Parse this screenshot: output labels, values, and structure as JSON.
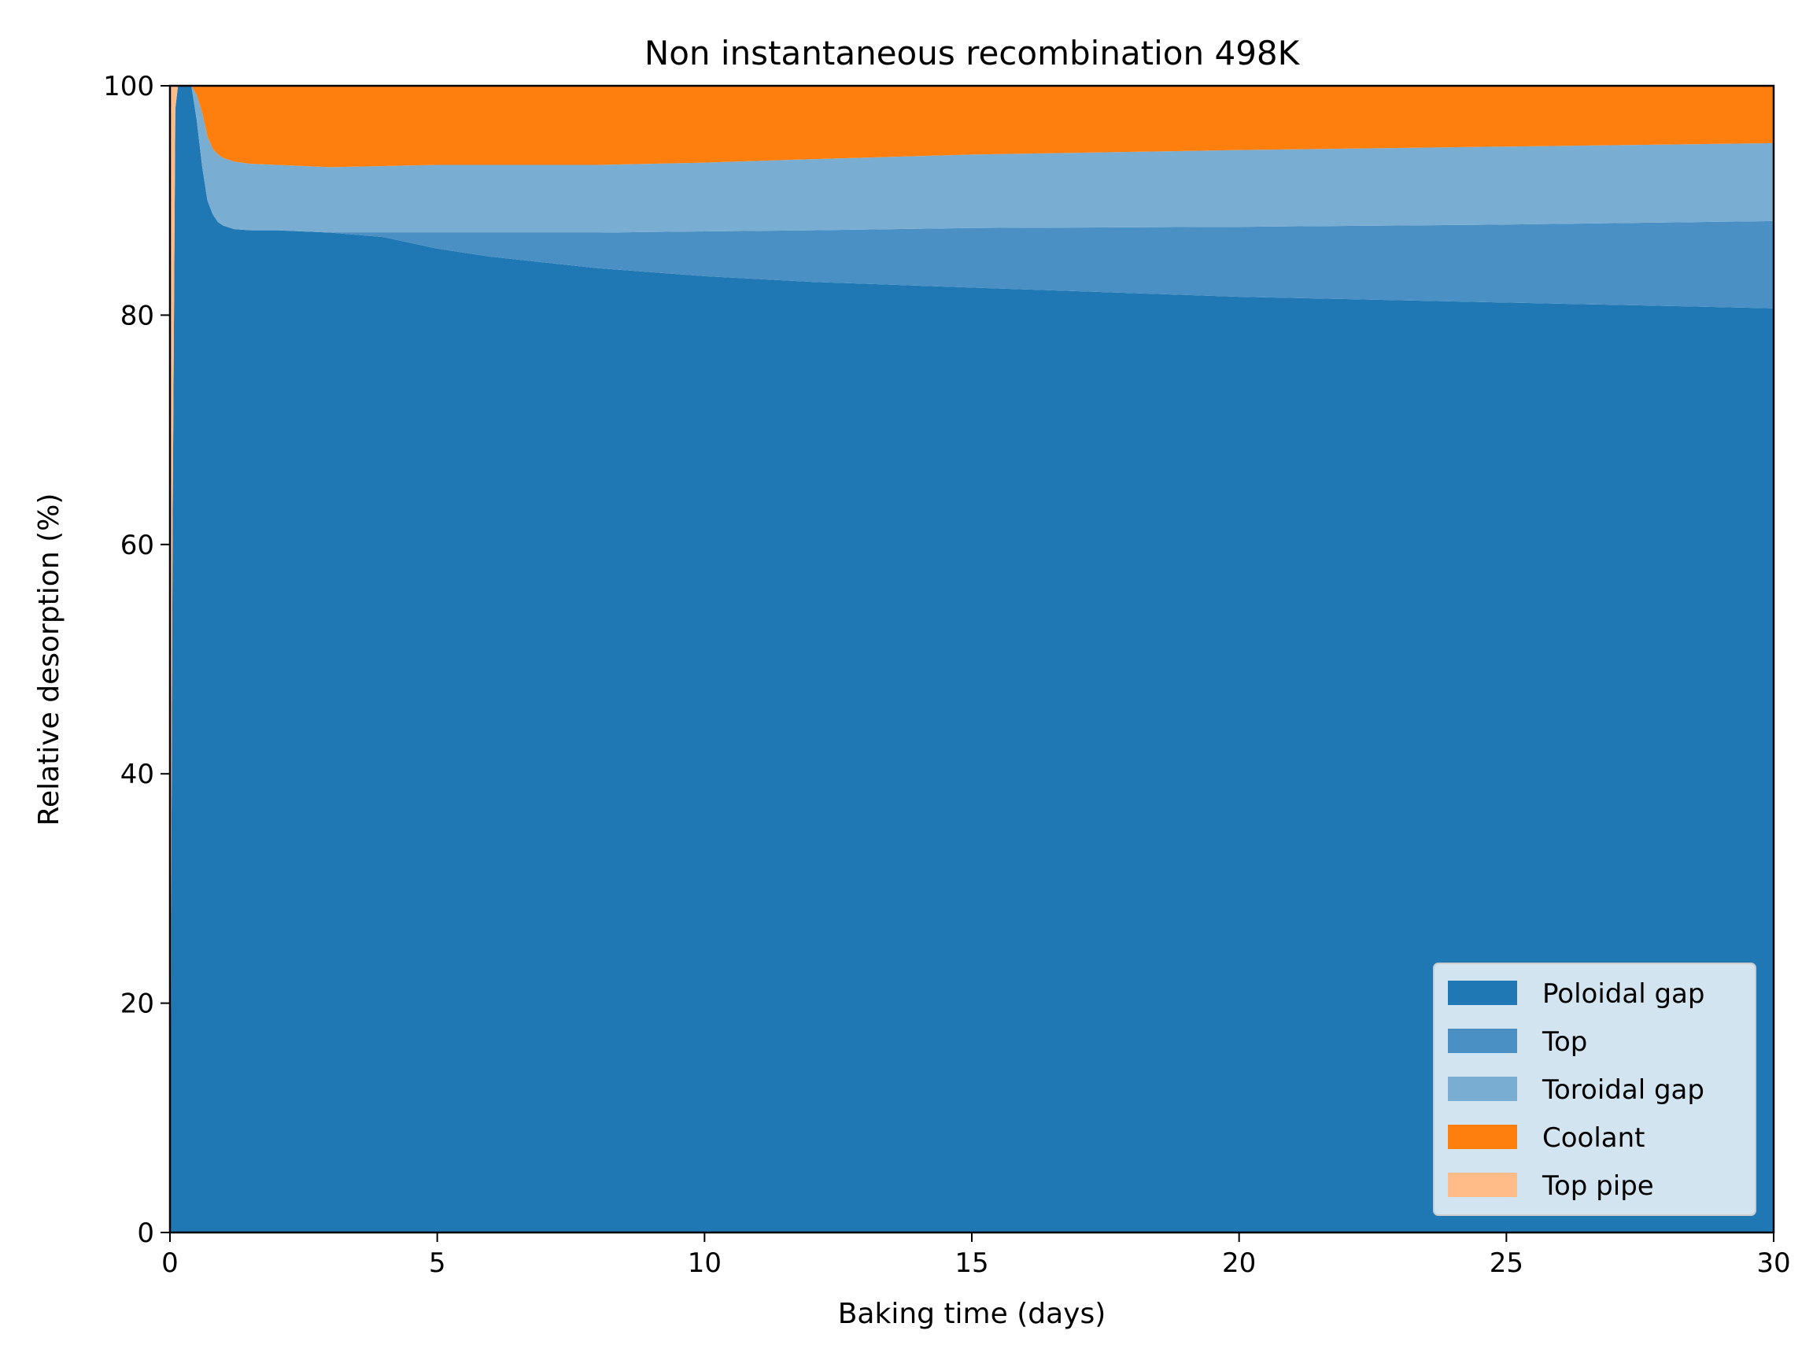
{
  "chart_data": {
    "type": "area",
    "stacked": true,
    "normalized_percent": true,
    "title": "Non instantaneous recombination 498K",
    "xlabel": "Baking time (days)",
    "ylabel": "Relative desorption (%)",
    "xlim": [
      0,
      30
    ],
    "ylim": [
      0,
      100
    ],
    "xticks": [
      0,
      5,
      10,
      15,
      20,
      25,
      30
    ],
    "yticks": [
      0,
      20,
      40,
      60,
      80,
      100
    ],
    "grid": false,
    "legend_position": "lower-right",
    "x": [
      0,
      0.05,
      0.1,
      0.15,
      0.2,
      0.25,
      0.3,
      0.4,
      0.5,
      0.6,
      0.7,
      0.8,
      0.9,
      1.0,
      1.2,
      1.5,
      2,
      3,
      4,
      5,
      6,
      8,
      10,
      12,
      15,
      20,
      25,
      30
    ],
    "series": [
      {
        "name": "Poloidal gap",
        "color": "#1f77b4",
        "values": [
          0,
          62,
          98,
          100,
          100,
          100,
          100,
          100,
          97,
          93,
          90,
          88.8,
          88.1,
          87.8,
          87.5,
          87.4,
          87.4,
          87.2,
          86.8,
          85.8,
          85.1,
          84.1,
          83.4,
          82.9,
          82.4,
          81.6,
          81.1,
          80.6
        ]
      },
      {
        "name": "Top",
        "color": "#4a90c4",
        "values": [
          0,
          0,
          0,
          0,
          0,
          0,
          0,
          0,
          0,
          0,
          0,
          0,
          0,
          0,
          0,
          0,
          0,
          0,
          0.4,
          1.4,
          2.1,
          3.1,
          3.9,
          4.5,
          5.2,
          6.1,
          6.8,
          7.6
        ]
      },
      {
        "name": "Toroidal gap",
        "color": "#7aadd2",
        "values": [
          0,
          0,
          0,
          0,
          0,
          0,
          0,
          0,
          2.2,
          4.7,
          5.6,
          5.7,
          5.9,
          5.9,
          5.9,
          5.8,
          5.7,
          5.7,
          5.8,
          5.9,
          5.9,
          5.9,
          6.0,
          6.2,
          6.4,
          6.7,
          6.8,
          6.8
        ]
      },
      {
        "name": "Coolant",
        "color": "#ff7f0e",
        "values": [
          0,
          0,
          0,
          0,
          0,
          0,
          0,
          0,
          0.8,
          2.3,
          4.4,
          5.5,
          6.0,
          6.3,
          6.6,
          6.8,
          6.9,
          7.1,
          7.0,
          6.9,
          6.9,
          6.9,
          6.7,
          6.4,
          6.0,
          5.6,
          5.3,
          5.0
        ]
      },
      {
        "name": "Top pipe",
        "color": "#ffbb88",
        "values": [
          100,
          38,
          2,
          0,
          0,
          0,
          0,
          0,
          0,
          0,
          0,
          0,
          0,
          0,
          0,
          0,
          0,
          0,
          0,
          0,
          0,
          0,
          0,
          0,
          0,
          0,
          0,
          0
        ]
      }
    ]
  }
}
